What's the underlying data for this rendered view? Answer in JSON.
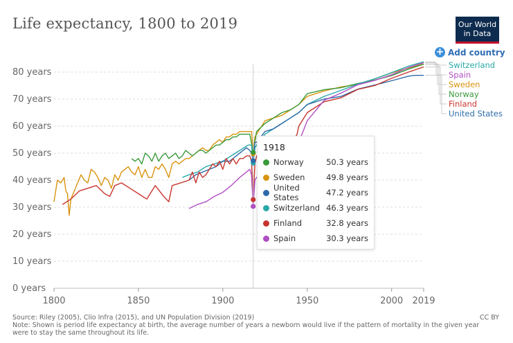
{
  "header": {
    "title": "Life expectancy, 1800 to 2019",
    "logo_line1": "Our World",
    "logo_line2": "in Data"
  },
  "controls": {
    "add_country": "Add country"
  },
  "tooltip": {
    "year": "1918",
    "rows": [
      {
        "country": "Norway",
        "value": "50.3 years"
      },
      {
        "country": "Sweden",
        "value": "49.8 years"
      },
      {
        "country": "United States",
        "value": "47.2 years"
      },
      {
        "country": "Switzerland",
        "value": "46.3 years"
      },
      {
        "country": "Finland",
        "value": "32.8 years"
      },
      {
        "country": "Spain",
        "value": "30.3 years"
      }
    ]
  },
  "colors": {
    "Norway": "#3a9a3a",
    "Sweden": "#d9930f",
    "United States": "#2d6aa8",
    "Switzerland": "#2aa8a8",
    "Finland": "#c8352f",
    "Spain": "#b04fc2"
  },
  "footer": {
    "source": "Source: Riley (2005), Clio Infra (2015), and UN Population Division (2019)",
    "note": "Note: Shown is period life expectancy at birth, the average number of years a newborn would live if the pattern of mortality in the given year were to stay the same throughout its life.",
    "license": "CC BY"
  },
  "chart_data": {
    "type": "line",
    "title": "Life expectancy, 1800 to 2019",
    "xlabel": "",
    "ylabel": "",
    "xlim": [
      1800,
      2019
    ],
    "ylim": [
      0,
      80
    ],
    "x_ticks": [
      1800,
      1850,
      1900,
      1950,
      2000,
      2019
    ],
    "y_ticks": [
      0,
      10,
      20,
      30,
      40,
      50,
      60,
      70,
      80
    ],
    "y_tick_labels": [
      "0 years",
      "10 years",
      "20 years",
      "30 years",
      "40 years",
      "50 years",
      "60 years",
      "70 years",
      "80 years"
    ],
    "highlight_year": 1918,
    "legend_order": [
      "Switzerland",
      "Spain",
      "Sweden",
      "Norway",
      "Finland",
      "United States"
    ],
    "series": [
      {
        "name": "Sweden",
        "points": [
          [
            1800,
            32
          ],
          [
            1802,
            40
          ],
          [
            1804,
            39
          ],
          [
            1806,
            41
          ],
          [
            1807,
            36
          ],
          [
            1808,
            35
          ],
          [
            1809,
            27
          ],
          [
            1810,
            33
          ],
          [
            1812,
            36
          ],
          [
            1814,
            39
          ],
          [
            1816,
            42
          ],
          [
            1818,
            40
          ],
          [
            1820,
            39
          ],
          [
            1822,
            44
          ],
          [
            1824,
            43
          ],
          [
            1826,
            41
          ],
          [
            1828,
            38
          ],
          [
            1830,
            41
          ],
          [
            1832,
            40
          ],
          [
            1834,
            37
          ],
          [
            1836,
            42
          ],
          [
            1838,
            40
          ],
          [
            1840,
            43
          ],
          [
            1842,
            44
          ],
          [
            1844,
            45
          ],
          [
            1846,
            43
          ],
          [
            1848,
            42
          ],
          [
            1850,
            45
          ],
          [
            1852,
            41
          ],
          [
            1854,
            44
          ],
          [
            1856,
            41
          ],
          [
            1858,
            41
          ],
          [
            1860,
            45
          ],
          [
            1862,
            44
          ],
          [
            1864,
            46
          ],
          [
            1866,
            44
          ],
          [
            1868,
            41
          ],
          [
            1870,
            46
          ],
          [
            1872,
            47
          ],
          [
            1874,
            46
          ],
          [
            1876,
            47
          ],
          [
            1878,
            48
          ],
          [
            1880,
            48
          ],
          [
            1882,
            49
          ],
          [
            1884,
            50
          ],
          [
            1886,
            51
          ],
          [
            1888,
            52
          ],
          [
            1890,
            51
          ],
          [
            1892,
            51
          ],
          [
            1894,
            53
          ],
          [
            1896,
            54
          ],
          [
            1898,
            55
          ],
          [
            1900,
            54
          ],
          [
            1902,
            56
          ],
          [
            1904,
            56
          ],
          [
            1906,
            57
          ],
          [
            1908,
            57
          ],
          [
            1910,
            58
          ],
          [
            1912,
            58
          ],
          [
            1914,
            58
          ],
          [
            1916,
            58
          ],
          [
            1917,
            58
          ],
          [
            1918,
            49.8
          ],
          [
            1919,
            56
          ],
          [
            1920,
            57
          ],
          [
            1925,
            62
          ],
          [
            1930,
            63
          ],
          [
            1935,
            64
          ],
          [
            1940,
            66
          ],
          [
            1945,
            68
          ],
          [
            1950,
            71
          ],
          [
            1960,
            73
          ],
          [
            1970,
            74.5
          ],
          [
            1980,
            75.5
          ],
          [
            1990,
            77.5
          ],
          [
            2000,
            79.7
          ],
          [
            2010,
            81.5
          ],
          [
            2019,
            83
          ]
        ]
      },
      {
        "name": "Norway",
        "points": [
          [
            1846,
            48
          ],
          [
            1848,
            47
          ],
          [
            1850,
            48
          ],
          [
            1852,
            46
          ],
          [
            1854,
            50
          ],
          [
            1856,
            49
          ],
          [
            1858,
            47
          ],
          [
            1860,
            50
          ],
          [
            1862,
            47
          ],
          [
            1864,
            49
          ],
          [
            1866,
            50
          ],
          [
            1868,
            48
          ],
          [
            1870,
            49
          ],
          [
            1872,
            50
          ],
          [
            1874,
            48
          ],
          [
            1876,
            49
          ],
          [
            1878,
            51
          ],
          [
            1880,
            50
          ],
          [
            1882,
            49
          ],
          [
            1884,
            50
          ],
          [
            1886,
            51
          ],
          [
            1888,
            51
          ],
          [
            1890,
            50
          ],
          [
            1892,
            51
          ],
          [
            1894,
            52
          ],
          [
            1896,
            53
          ],
          [
            1898,
            53
          ],
          [
            1900,
            54
          ],
          [
            1902,
            55
          ],
          [
            1904,
            55
          ],
          [
            1906,
            56
          ],
          [
            1908,
            56
          ],
          [
            1910,
            57
          ],
          [
            1912,
            57
          ],
          [
            1914,
            57
          ],
          [
            1916,
            57
          ],
          [
            1918,
            50.3
          ],
          [
            1920,
            58
          ],
          [
            1925,
            61
          ],
          [
            1930,
            63
          ],
          [
            1935,
            65
          ],
          [
            1940,
            66
          ],
          [
            1945,
            68
          ],
          [
            1950,
            72
          ],
          [
            1960,
            73.5
          ],
          [
            1970,
            74.2
          ],
          [
            1980,
            75.8
          ],
          [
            1990,
            77
          ],
          [
            2000,
            78.7
          ],
          [
            2010,
            81.1
          ],
          [
            2019,
            82.9
          ]
        ]
      },
      {
        "name": "Switzerland",
        "points": [
          [
            1876,
            41
          ],
          [
            1880,
            42
          ],
          [
            1885,
            43
          ],
          [
            1890,
            45
          ],
          [
            1895,
            46
          ],
          [
            1900,
            47
          ],
          [
            1905,
            49
          ],
          [
            1910,
            51
          ],
          [
            1915,
            53
          ],
          [
            1917,
            53
          ],
          [
            1918,
            46.3
          ],
          [
            1919,
            52
          ],
          [
            1920,
            53
          ],
          [
            1925,
            57
          ],
          [
            1930,
            59
          ],
          [
            1935,
            61
          ],
          [
            1940,
            63
          ],
          [
            1945,
            65
          ],
          [
            1950,
            68
          ],
          [
            1960,
            71
          ],
          [
            1970,
            73.2
          ],
          [
            1980,
            75.6
          ],
          [
            1990,
            77.5
          ],
          [
            2000,
            79.8
          ],
          [
            2010,
            82.2
          ],
          [
            2019,
            83.8
          ]
        ]
      },
      {
        "name": "United States",
        "points": [
          [
            1880,
            40
          ],
          [
            1884,
            42
          ],
          [
            1888,
            43
          ],
          [
            1892,
            44
          ],
          [
            1896,
            45
          ],
          [
            1900,
            47
          ],
          [
            1904,
            47
          ],
          [
            1908,
            49
          ],
          [
            1912,
            51
          ],
          [
            1914,
            52
          ],
          [
            1916,
            51
          ],
          [
            1917,
            50
          ],
          [
            1918,
            47.2
          ],
          [
            1919,
            54
          ],
          [
            1920,
            54
          ],
          [
            1925,
            58
          ],
          [
            1930,
            59
          ],
          [
            1935,
            61
          ],
          [
            1940,
            63
          ],
          [
            1945,
            65
          ],
          [
            1950,
            68
          ],
          [
            1960,
            70
          ],
          [
            1970,
            71
          ],
          [
            1980,
            73.7
          ],
          [
            1990,
            75.2
          ],
          [
            2000,
            76.8
          ],
          [
            2010,
            78.5
          ],
          [
            2014,
            78.8
          ],
          [
            2019,
            78.8
          ]
        ]
      },
      {
        "name": "Finland",
        "points": [
          [
            1805,
            31
          ],
          [
            1810,
            33
          ],
          [
            1815,
            36
          ],
          [
            1820,
            37
          ],
          [
            1825,
            38
          ],
          [
            1830,
            35
          ],
          [
            1833,
            34
          ],
          [
            1836,
            38
          ],
          [
            1840,
            39
          ],
          [
            1845,
            37
          ],
          [
            1850,
            35
          ],
          [
            1855,
            33
          ],
          [
            1860,
            38
          ],
          [
            1865,
            34
          ],
          [
            1868,
            32
          ],
          [
            1870,
            38
          ],
          [
            1875,
            39
          ],
          [
            1880,
            40
          ],
          [
            1882,
            43
          ],
          [
            1884,
            39
          ],
          [
            1886,
            43
          ],
          [
            1888,
            41
          ],
          [
            1890,
            42
          ],
          [
            1892,
            44
          ],
          [
            1894,
            46
          ],
          [
            1896,
            45
          ],
          [
            1898,
            47
          ],
          [
            1900,
            44
          ],
          [
            1902,
            48
          ],
          [
            1904,
            46
          ],
          [
            1906,
            48
          ],
          [
            1908,
            46
          ],
          [
            1910,
            48
          ],
          [
            1912,
            48
          ],
          [
            1914,
            49
          ],
          [
            1916,
            49
          ],
          [
            1917,
            47
          ],
          [
            1918,
            32.8
          ],
          [
            1919,
            46
          ],
          [
            1920,
            49
          ],
          [
            1925,
            50
          ],
          [
            1930,
            52
          ],
          [
            1935,
            54
          ],
          [
            1940,
            53
          ],
          [
            1944,
            57
          ],
          [
            1945,
            60
          ],
          [
            1950,
            65
          ],
          [
            1960,
            69
          ],
          [
            1970,
            70.5
          ],
          [
            1980,
            73.6
          ],
          [
            1990,
            75
          ],
          [
            2000,
            77.7
          ],
          [
            2010,
            80
          ],
          [
            2019,
            81.9
          ]
        ]
      },
      {
        "name": "Spain",
        "points": [
          [
            1880,
            29.5
          ],
          [
            1885,
            31
          ],
          [
            1890,
            32
          ],
          [
            1895,
            34
          ],
          [
            1900,
            35.5
          ],
          [
            1905,
            38
          ],
          [
            1910,
            41
          ],
          [
            1914,
            43
          ],
          [
            1916,
            44
          ],
          [
            1917,
            42
          ],
          [
            1918,
            30.3
          ],
          [
            1919,
            40
          ],
          [
            1920,
            41
          ],
          [
            1925,
            45
          ],
          [
            1930,
            49
          ],
          [
            1935,
            51
          ],
          [
            1940,
            50
          ],
          [
            1945,
            54
          ],
          [
            1950,
            62
          ],
          [
            1960,
            69.5
          ],
          [
            1970,
            72.2
          ],
          [
            1980,
            75.3
          ],
          [
            1990,
            76.9
          ],
          [
            2000,
            79
          ],
          [
            2010,
            81.7
          ],
          [
            2019,
            83.5
          ]
        ]
      }
    ]
  }
}
